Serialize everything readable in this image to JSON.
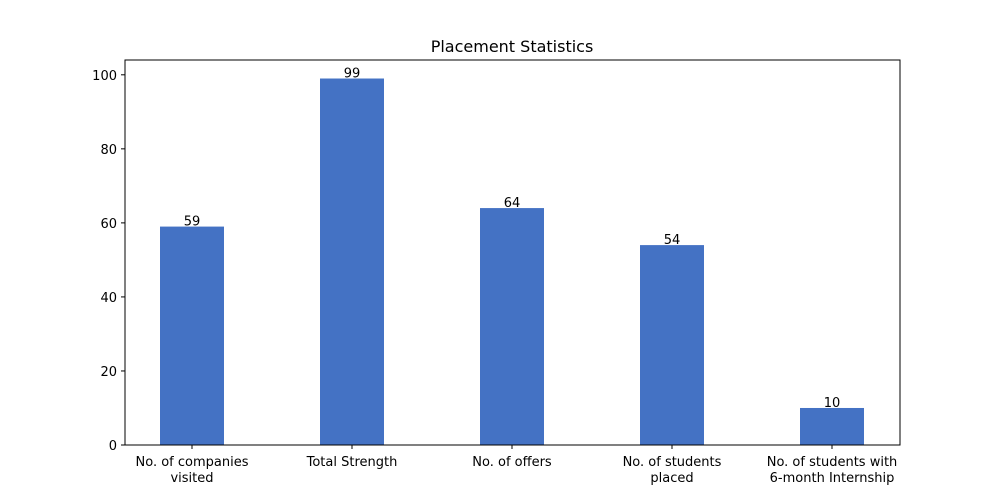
{
  "chart_data": {
    "type": "bar",
    "title": "Placement Statistics",
    "xlabel": "",
    "ylabel": "",
    "ylim": [
      0,
      104
    ],
    "yticks": [
      0,
      20,
      40,
      60,
      80,
      100
    ],
    "grid": false,
    "bar_color": "#4472c4",
    "categories": [
      [
        "No. of companies",
        "visited"
      ],
      [
        "Total Strength"
      ],
      [
        "No. of offers"
      ],
      [
        "No. of students",
        "placed"
      ],
      [
        "No. of students with",
        "6-month Internship"
      ]
    ],
    "values": [
      59,
      99,
      64,
      54,
      10
    ]
  }
}
